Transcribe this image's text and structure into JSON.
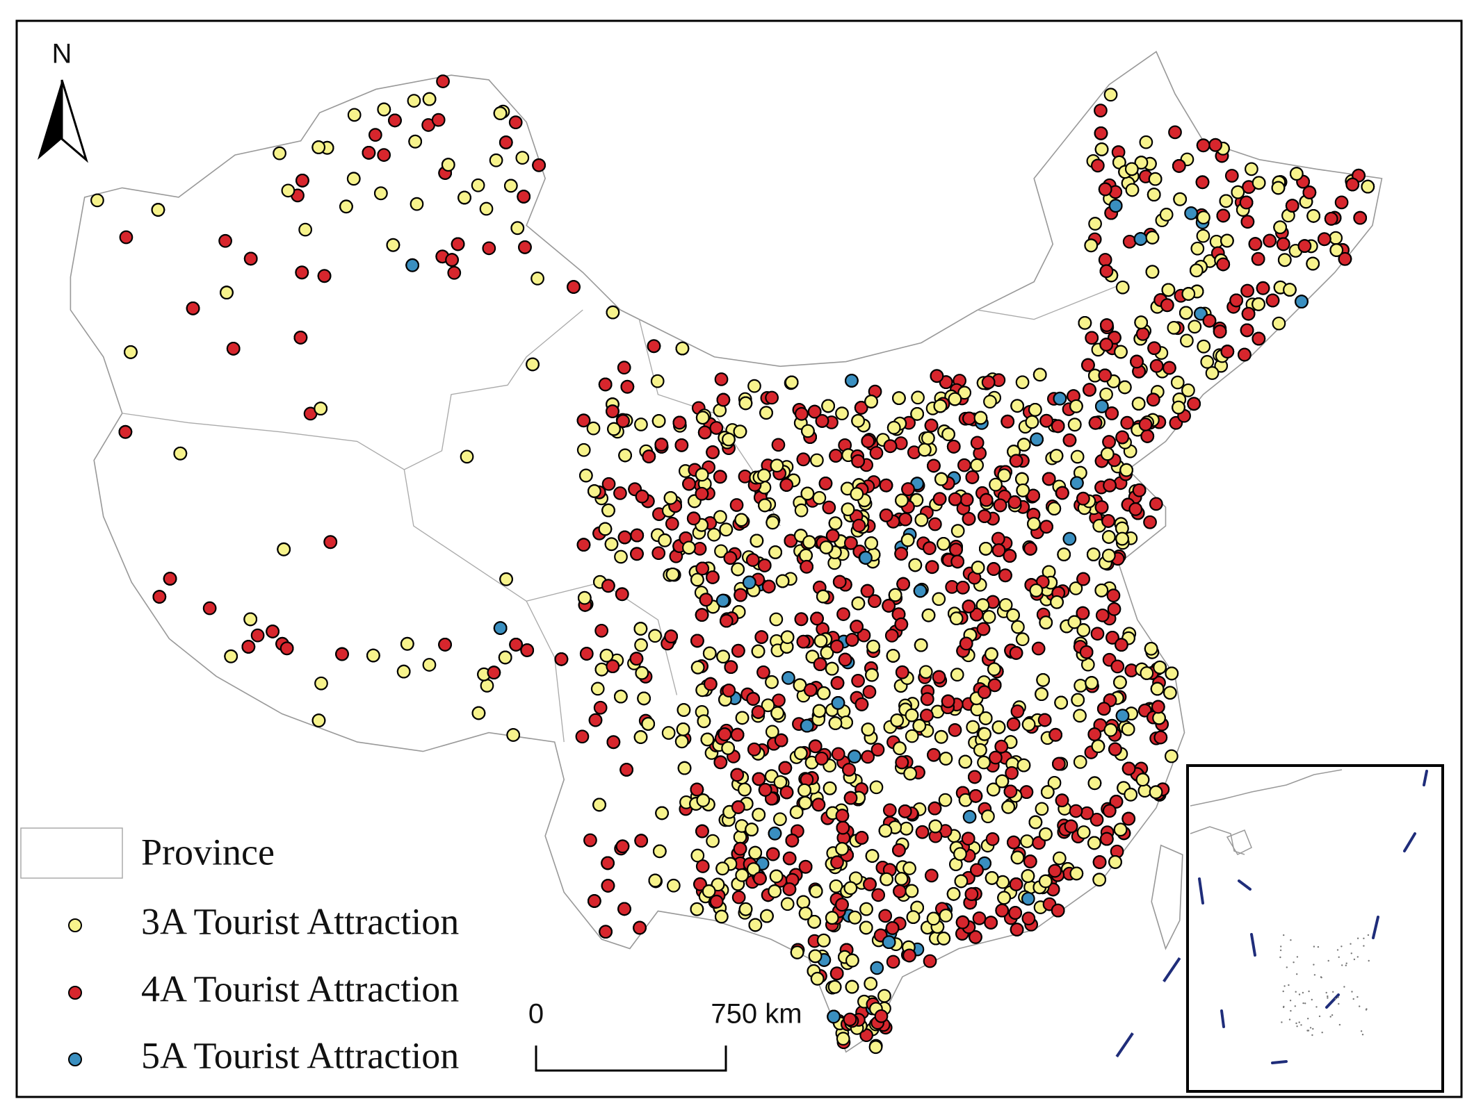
{
  "north_arrow": "N",
  "legend": {
    "items": [
      {
        "label": "Province"
      },
      {
        "label": "3A Tourist Attraction"
      },
      {
        "label": "4A Tourist Attraction"
      },
      {
        "label": "5A Tourist Attraction"
      }
    ]
  },
  "scale_bar": {
    "start": "0",
    "end": "750 km"
  }
}
